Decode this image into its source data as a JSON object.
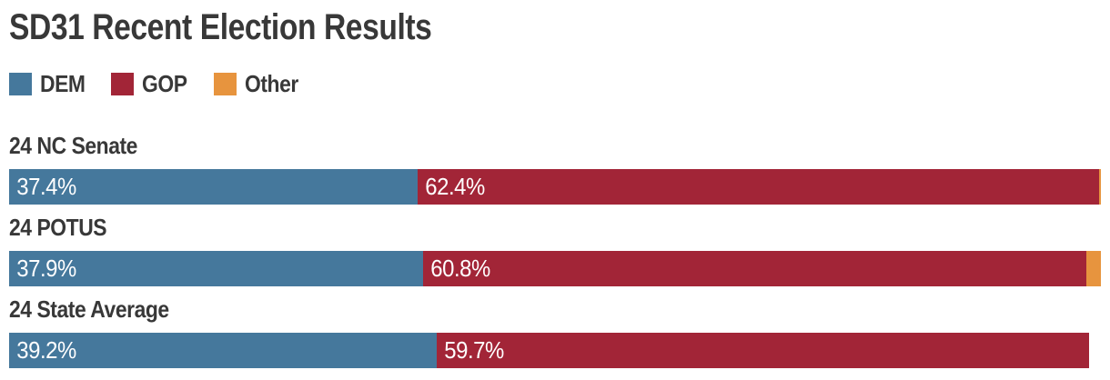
{
  "colors": {
    "dem": "#45789C",
    "gop": "#A22537",
    "other": "#E7943E",
    "text": "#383838",
    "bar_label": "#FFFFFF",
    "background": "#FFFFFF"
  },
  "chart_data": {
    "type": "bar",
    "variant": "horizontal-stacked-percent",
    "title": "SD31 Recent Election Results",
    "xlabel": "",
    "ylabel": "",
    "x_range_percent": [
      0,
      100
    ],
    "grid": false,
    "legend_position": "top-left",
    "legend": [
      {
        "label": "DEM",
        "series": "DEM",
        "color": "#45789C"
      },
      {
        "label": "GOP",
        "series": "GOP",
        "color": "#A22537"
      },
      {
        "label": "Other",
        "series": "Other",
        "color": "#E7943E"
      }
    ],
    "categories": [
      "24 NC Senate",
      "24 POTUS",
      "24 State Average"
    ],
    "rows": [
      {
        "label": "24 NC Senate",
        "segments": [
          {
            "series": "DEM",
            "value": 37.4,
            "text": "37.4%"
          },
          {
            "series": "GOP",
            "value": 62.4,
            "text": "62.4%"
          },
          {
            "series": "Other",
            "value": 0.2,
            "text": ""
          }
        ]
      },
      {
        "label": "24 POTUS",
        "segments": [
          {
            "series": "DEM",
            "value": 37.9,
            "text": "37.9%"
          },
          {
            "series": "GOP",
            "value": 60.8,
            "text": "60.8%"
          },
          {
            "series": "Other",
            "value": 1.3,
            "text": ""
          }
        ]
      },
      {
        "label": "24 State Average",
        "segments": [
          {
            "series": "DEM",
            "value": 39.2,
            "text": "39.2%"
          },
          {
            "series": "GOP",
            "value": 59.7,
            "text": "59.7%"
          },
          {
            "series": "Other",
            "value": 0,
            "text": ""
          }
        ]
      }
    ]
  }
}
